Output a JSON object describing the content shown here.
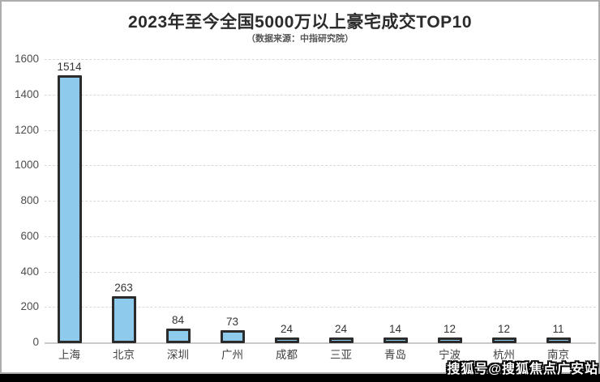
{
  "chart_data": {
    "type": "bar",
    "title": "2023年至今全国5000万以上豪宅成交TOP10",
    "subtitle": "（数据来源：中指研究院）",
    "categories": [
      "上海",
      "北京",
      "深圳",
      "广州",
      "成都",
      "三亚",
      "青岛",
      "宁波",
      "杭州",
      "南京"
    ],
    "values": [
      1514,
      263,
      84,
      73,
      24,
      24,
      14,
      12,
      12,
      11
    ],
    "xlabel": "",
    "ylabel": "",
    "ylim": [
      0,
      1600
    ],
    "yticks": [
      0,
      200,
      400,
      600,
      800,
      1000,
      1200,
      1400,
      1600
    ],
    "grid": "horizontal-dashed",
    "legend": "none",
    "data_labels": true,
    "colors": {
      "bar_fill": "#8ecaeb",
      "bar_border": "#2b2b2b",
      "gridline": "#d9d9d9",
      "axis_line": "#c9c9c9",
      "tick_label": "#4d4d4d",
      "value_label": "#333333",
      "title": "#2b2b2b"
    }
  },
  "watermark": "搜狐号@搜狐焦点广安站"
}
